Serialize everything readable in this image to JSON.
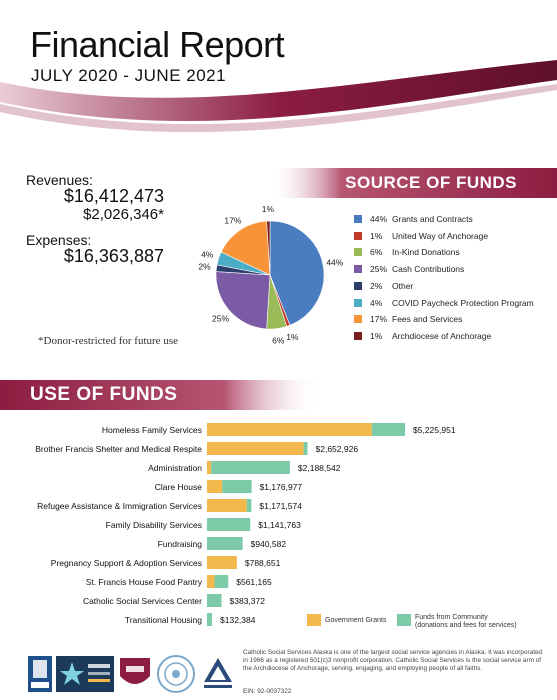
{
  "header": {
    "title": "Financial Report",
    "subtitle": "JULY 2020 - JUNE 2021"
  },
  "financials": {
    "revenues_label": "Revenues:",
    "revenues_value": "$16,412,473",
    "restricted_value": "$2,026,346*",
    "expenses_label": "Expenses:",
    "expenses_value": "$16,363,887",
    "footnote": "*Donor-restricted for future use"
  },
  "colors": {
    "maroon": "#8c1d40",
    "blue": "#4a7cc0",
    "red": "#c0392b",
    "green": "#9bbb59",
    "purple": "#7b5aa6",
    "navy": "#2c3e6b",
    "teal": "#4bacc6",
    "orange": "#f7943a",
    "darkred": "#7a1f1f",
    "gov_yellow": "#f2b84b",
    "community_green": "#7ccaa7"
  },
  "source_of_funds": {
    "title": "SOURCE OF FUNDS",
    "chart_data": {
      "type": "pie",
      "slices": [
        {
          "label": "Grants and Contracts",
          "pct_label": "44%",
          "value": 44,
          "color": "#4a7cc0"
        },
        {
          "label": "United Way of Anchorage",
          "pct_label": "1%",
          "value": 1,
          "color": "#c0392b"
        },
        {
          "label": "In-Kind Donations",
          "pct_label": "6%",
          "value": 6,
          "color": "#9bbb59"
        },
        {
          "label": "Cash Contributions",
          "pct_label": "25%",
          "value": 25,
          "color": "#7b5aa6"
        },
        {
          "label": "Other",
          "pct_label": "2%",
          "value": 2,
          "color": "#2c3e6b"
        },
        {
          "label": "COVID Paycheck Protection Program",
          "pct_label": "4%",
          "value": 4,
          "color": "#4bacc6"
        },
        {
          "label": "Fees and Services",
          "pct_label": "17%",
          "value": 17,
          "color": "#f7943a"
        },
        {
          "label": "Archdiocese of Anchorage",
          "pct_label": "1%",
          "value": 1,
          "color": "#7a1f1f"
        }
      ]
    }
  },
  "use_of_funds": {
    "title": "USE OF FUNDS",
    "chart_data": {
      "type": "bar",
      "orientation": "horizontal",
      "stacked": true,
      "categories": [
        "Homeless Family Services",
        "Brother Francis Shelter and Medical Respite",
        "Administration",
        "Clare House",
        "Refugee Assistance & Immigration Services",
        "Family Disability Services",
        "Fundraising",
        "Pregnancy Support & Adoption Services",
        "St. Francis House Food Pantry",
        "Catholic Social Services Center",
        "Transitional Housing"
      ],
      "totals": [
        5225951,
        2652926,
        2188542,
        1176977,
        1171574,
        1141763,
        940582,
        788651,
        561165,
        383372,
        132384
      ],
      "total_labels": [
        "$5,225,951",
        "$2,652,926",
        "$2,188,542",
        "$1,176,977",
        "$1,171,574",
        "$1,141,763",
        "$940,582",
        "$788,651",
        "$561,165",
        "$383,372",
        "$132,384"
      ],
      "series": [
        {
          "name": "Government Grants",
          "values": [
            4350000,
            2550000,
            110000,
            400000,
            1050000,
            0,
            0,
            788651,
            200000,
            0,
            0
          ]
        },
        {
          "name": "Funds from Community (donations and fees for services)",
          "values": [
            875951,
            102926,
            2078542,
            776977,
            121574,
            1141763,
            940582,
            0,
            361165,
            383372,
            132384
          ]
        }
      ],
      "legend_position": "bottom-right"
    },
    "legend": {
      "gov_label": "Government Grants",
      "community_label_1": "Funds from Community",
      "community_label_2": "(donations and fees for services)"
    }
  },
  "footer": {
    "text": "Catholic Social Services Alaska is one of the largest social service agencies in Alaska. It was incorporated in 1966 as a registered 501(c)3 nonprofit corporation. Catholic Social Services is the social service arm of the Archdiocese of Anchorage, serving, engaging, and employing people of all faiths.",
    "ein": "EIN: 92-0037322"
  },
  "logos": [
    "bbb-logo",
    "charity-navigator-logo",
    "coa-logo",
    "seal-logo",
    "foster-allison-logo"
  ]
}
